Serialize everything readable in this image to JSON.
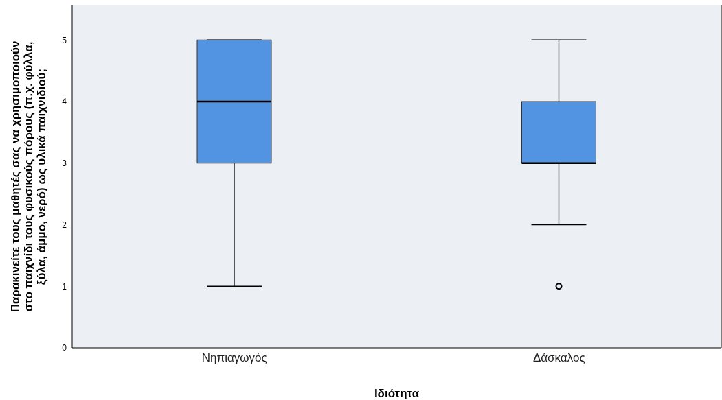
{
  "chart_data": {
    "type": "box",
    "xlabel": "Ιδιότητα",
    "ylabel": "Παρακινείτε τους μαθητές σας να χρησιμοποιούν\nστο παιχνίδι τους φυσικούς πόρους (π.χ. φύλλα,\nξύλα, άμμο, νερό) ως υλικά παιχνιδιού;",
    "categories": [
      "Νηπιαγωγός",
      "Δάσκαλος"
    ],
    "boxes": [
      {
        "low": 1,
        "q1": 3,
        "median": 4,
        "q3": 5,
        "high": 5
      },
      {
        "low": 2,
        "q1": 3,
        "median": 3,
        "q3": 4,
        "high": 5,
        "outliers": [
          1
        ]
      }
    ],
    "color": "#5294e2",
    "ylim": [
      0,
      5.56
    ],
    "yticks": [
      0,
      1,
      2,
      3,
      4,
      5
    ],
    "grid": false
  }
}
